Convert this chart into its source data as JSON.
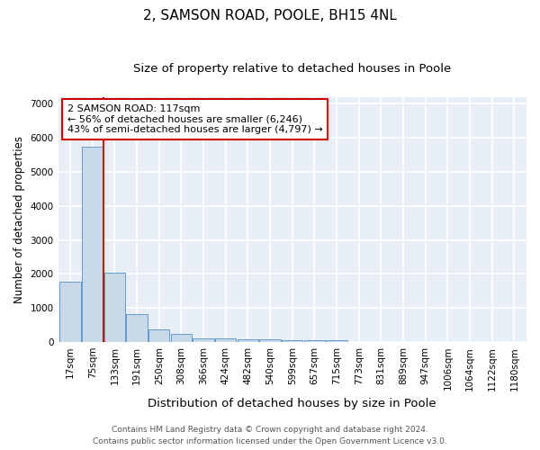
{
  "title1": "2, SAMSON ROAD, POOLE, BH15 4NL",
  "title2": "Size of property relative to detached houses in Poole",
  "xlabel": "Distribution of detached houses by size in Poole",
  "ylabel": "Number of detached properties",
  "footnote1": "Contains HM Land Registry data © Crown copyright and database right 2024.",
  "footnote2": "Contains public sector information licensed under the Open Government Licence v3.0.",
  "categories": [
    "17sqm",
    "75sqm",
    "133sqm",
    "191sqm",
    "250sqm",
    "308sqm",
    "366sqm",
    "424sqm",
    "482sqm",
    "540sqm",
    "599sqm",
    "657sqm",
    "715sqm",
    "773sqm",
    "831sqm",
    "889sqm",
    "947sqm",
    "1006sqm",
    "1064sqm",
    "1122sqm",
    "1180sqm"
  ],
  "values": [
    1760,
    5750,
    2050,
    820,
    370,
    240,
    120,
    100,
    90,
    75,
    60,
    60,
    55,
    10,
    8,
    6,
    5,
    4,
    3,
    3,
    3
  ],
  "bar_color": "#c9d9e9",
  "bar_edge_color": "#6699cc",
  "vline_color": "#cc0000",
  "vline_pos": 1.5,
  "annotation_text": "2 SAMSON ROAD: 117sqm\n← 56% of detached houses are smaller (6,246)\n43% of semi-detached houses are larger (4,797) →",
  "annotation_box_facecolor": "white",
  "annotation_box_edgecolor": "#cc0000",
  "ylim": [
    0,
    7200
  ],
  "yticks": [
    0,
    1000,
    2000,
    3000,
    4000,
    5000,
    6000,
    7000
  ],
  "plot_bg_color": "#e8eef5",
  "grid_color": "white",
  "fig_bg_color": "white",
  "title1_fontsize": 11,
  "title2_fontsize": 9.5,
  "xlabel_fontsize": 9.5,
  "ylabel_fontsize": 8.5,
  "tick_fontsize": 7.5,
  "annotation_fontsize": 8,
  "footnote_fontsize": 6.5
}
